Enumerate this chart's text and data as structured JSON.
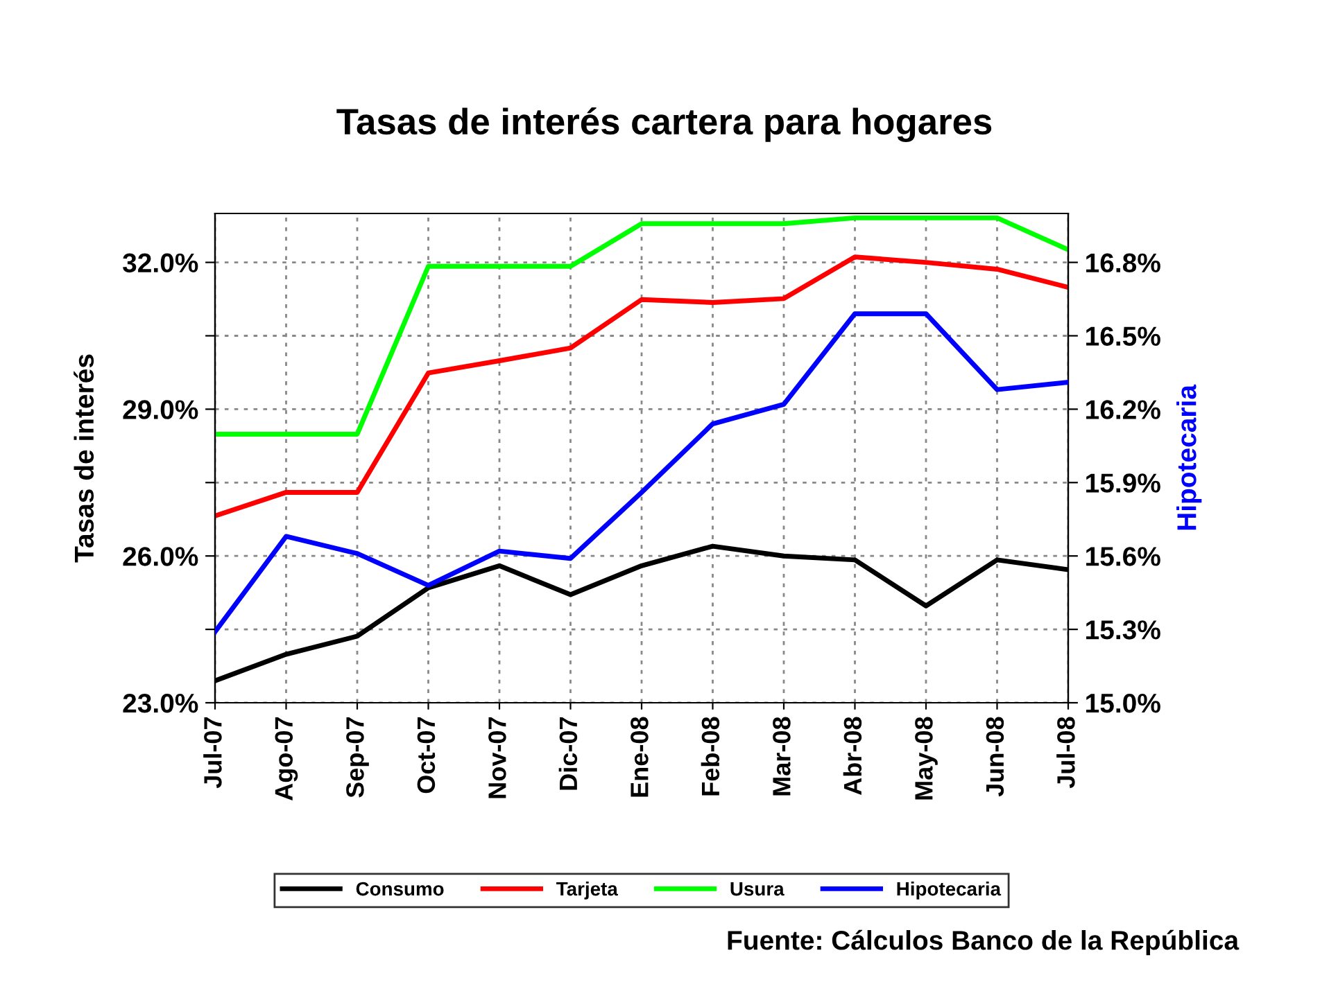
{
  "chart_data": {
    "type": "line",
    "title": "Tasas de interés cartera para hogares",
    "ylabel": "Tasas de interés",
    "y2label": "Hipotecaria",
    "categories": [
      "Jul-07",
      "Ago-07",
      "Sep-07",
      "Oct-07",
      "Nov-07",
      "Dic-07",
      "Ene-08",
      "Feb-08",
      "Mar-08",
      "Abr-08",
      "May-08",
      "Jun-08",
      "Jul-08"
    ],
    "series": [
      {
        "name": "Consumo",
        "color": "#000000",
        "values": [
          23.45,
          23.99,
          24.36,
          25.35,
          25.8,
          25.21,
          25.8,
          26.2,
          26.0,
          25.92,
          24.98,
          25.92,
          25.72
        ]
      },
      {
        "name": "Tarjeta",
        "color": "#ff0000",
        "values": [
          26.82,
          27.3,
          27.3,
          29.74,
          29.99,
          30.25,
          31.24,
          31.18,
          31.26,
          32.11,
          32.0,
          31.86,
          31.49
        ]
      },
      {
        "name": "Usura",
        "color": "#00ff00",
        "values": [
          28.49,
          28.49,
          28.49,
          31.92,
          31.92,
          31.92,
          32.79,
          32.79,
          32.79,
          32.91,
          32.91,
          32.91,
          32.26
        ]
      },
      {
        "name": "Hipotecaria",
        "color": "#0000ff",
        "axis": "y2",
        "values": [
          15.29,
          15.68,
          15.61,
          15.48,
          15.62,
          15.59,
          15.86,
          16.14,
          16.22,
          16.59,
          16.59,
          16.28,
          16.31
        ]
      }
    ],
    "ylim": [
      23,
      33
    ],
    "yticks": [
      {
        "value": 23,
        "label": "23.0%"
      },
      {
        "value": 24.5,
        "label": null
      },
      {
        "value": 26,
        "label": "26.0%"
      },
      {
        "value": 27.5,
        "label": null
      },
      {
        "value": 29,
        "label": "29.0%"
      },
      {
        "value": 30.5,
        "label": null
      },
      {
        "value": 32,
        "label": "32.0%"
      }
    ],
    "y2lim": [
      15.0,
      17.0
    ],
    "y2ticks": [
      {
        "value": 15.0,
        "label": "15.0%"
      },
      {
        "value": 15.3,
        "label": "15.3%"
      },
      {
        "value": 15.6,
        "label": "15.6%"
      },
      {
        "value": 15.9,
        "label": "15.9%"
      },
      {
        "value": 16.2,
        "label": "16.2%"
      },
      {
        "value": 16.5,
        "label": "16.5%"
      },
      {
        "value": 16.8,
        "label": "16.8%"
      }
    ],
    "grid": true,
    "legend": "bottom",
    "marker": "none",
    "line_style": "solid",
    "annotations": [
      "Fuente: Cálculos Banco de la República"
    ]
  }
}
